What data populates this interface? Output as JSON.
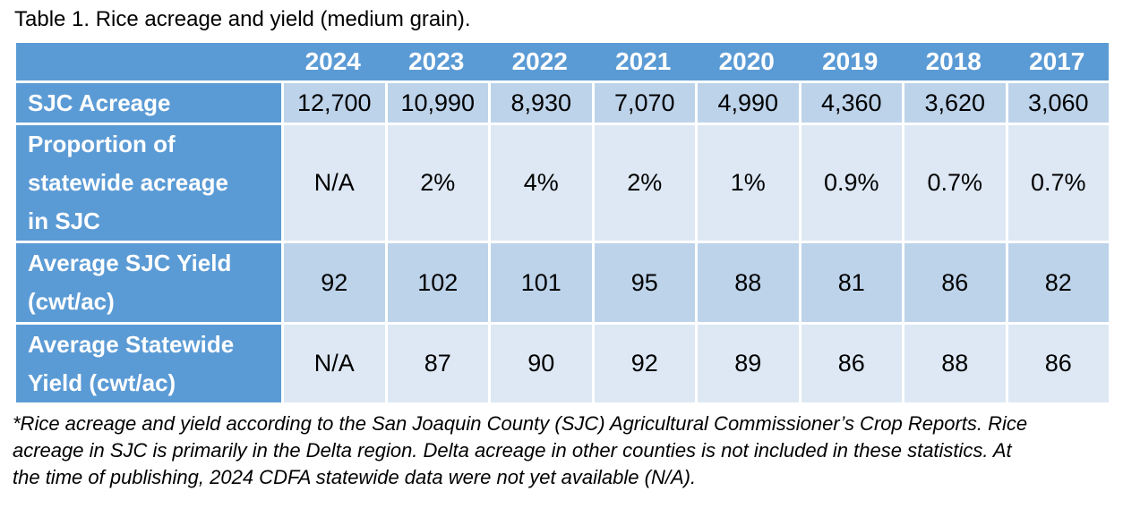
{
  "title": "Table 1. Rice acreage and yield (medium grain).",
  "colors": {
    "header_blue": "#5b9bd5",
    "band_dark": "#bdd3ea",
    "band_light": "#dde8f4",
    "header_text": "#ffffff",
    "body_text": "#000000"
  },
  "table": {
    "years": [
      "2024",
      "2023",
      "2022",
      "2021",
      "2020",
      "2019",
      "2018",
      "2017"
    ],
    "rows": [
      {
        "label_lines": [
          "SJC Acreage"
        ],
        "values": [
          "12,700",
          "10,990",
          "8,930",
          "7,070",
          "4,990",
          "4,360",
          "3,620",
          "3,060"
        ]
      },
      {
        "label_lines": [
          "Proportion of",
          "statewide acreage",
          "in SJC"
        ],
        "values": [
          "N/A",
          "2%",
          "4%",
          "2%",
          "1%",
          "0.9%",
          "0.7%",
          "0.7%"
        ]
      },
      {
        "label_lines": [
          "Average SJC Yield",
          "(cwt/ac)"
        ],
        "values": [
          "92",
          "102",
          "101",
          "95",
          "88",
          "81",
          "86",
          "82"
        ]
      },
      {
        "label_lines": [
          "Average Statewide",
          "Yield (cwt/ac)"
        ],
        "values": [
          "N/A",
          "87",
          "90",
          "92",
          "89",
          "86",
          "88",
          "86"
        ]
      }
    ]
  },
  "footnote": {
    "lines": [
      "*Rice acreage and yield according to the San Joaquin County (SJC) Agricultural Commissioner’s Crop Reports. Rice",
      "acreage in SJC is primarily in the Delta region. Delta acreage in other counties is not included in these statistics. At",
      "the time of publishing, 2024 CDFA statewide data were not yet available (N/A)."
    ]
  },
  "chart_data": {
    "type": "table",
    "title": "Table 1. Rice acreage and yield (medium grain).",
    "columns": [
      "",
      "2024",
      "2023",
      "2022",
      "2021",
      "2020",
      "2019",
      "2018",
      "2017"
    ],
    "rows": [
      [
        "SJC Acreage",
        "12,700",
        "10,990",
        "8,930",
        "7,070",
        "4,990",
        "4,360",
        "3,620",
        "3,060"
      ],
      [
        "Proportion of statewide acreage in SJC",
        "N/A",
        "2%",
        "4%",
        "2%",
        "1%",
        "0.9%",
        "0.7%",
        "0.7%"
      ],
      [
        "Average SJC Yield (cwt/ac)",
        "92",
        "102",
        "101",
        "95",
        "88",
        "81",
        "86",
        "82"
      ],
      [
        "Average Statewide Yield (cwt/ac)",
        "N/A",
        "87",
        "90",
        "92",
        "89",
        "86",
        "88",
        "86"
      ]
    ],
    "footnote": "*Rice acreage and yield according to the San Joaquin County (SJC) Agricultural Commissioner’s Crop Reports. Rice acreage in SJC is primarily in the Delta region. Delta acreage in other counties is not included in these statistics. At the time of publishing, 2024 CDFA statewide data were not yet available (N/A)."
  }
}
